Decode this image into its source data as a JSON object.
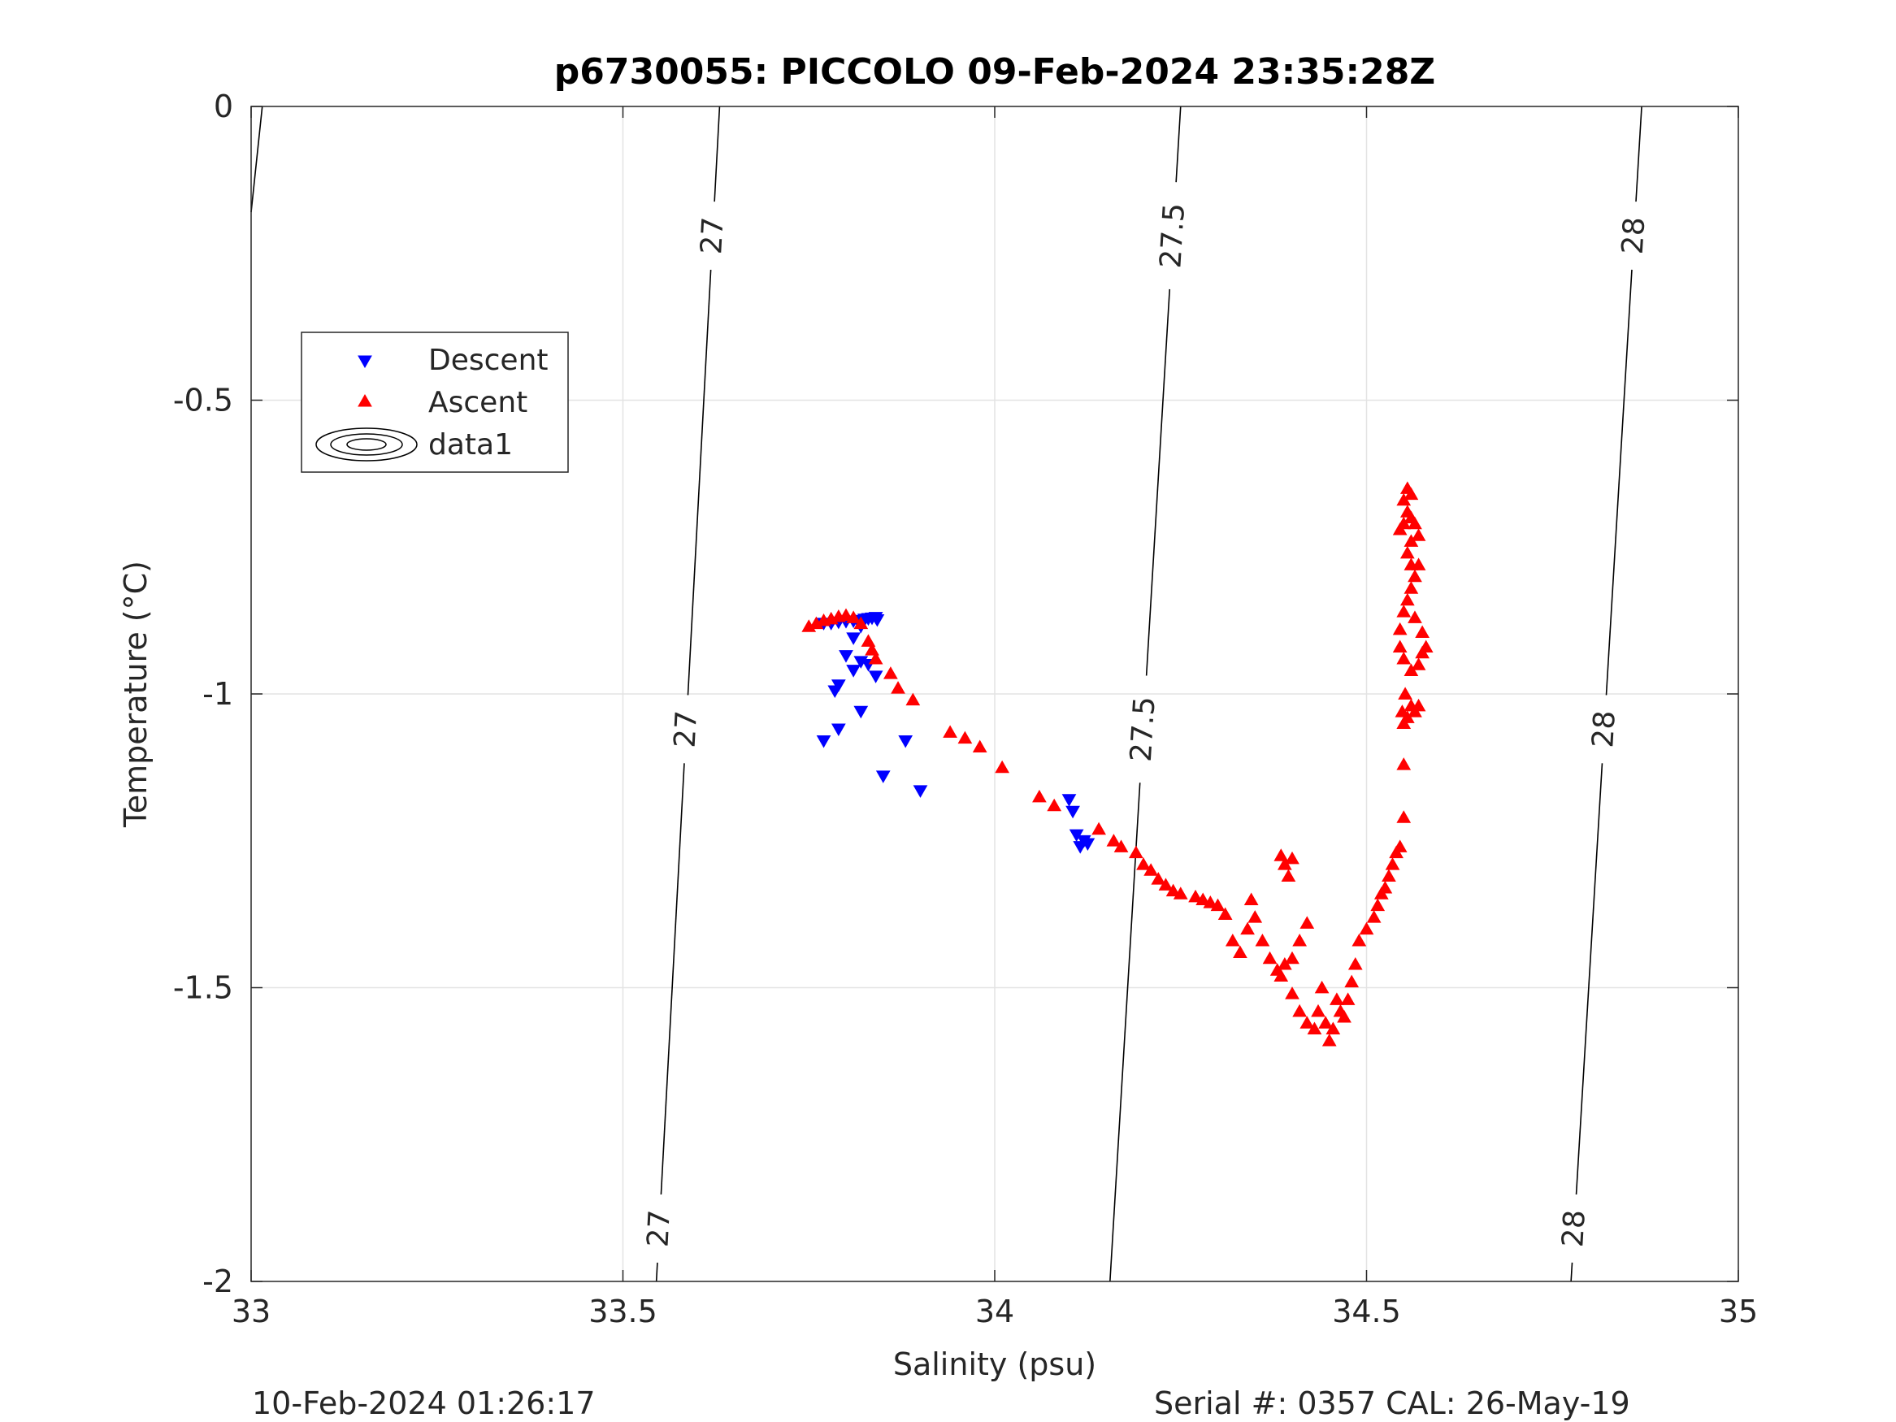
{
  "chart_data": {
    "type": "scatter",
    "title": "p6730055: PICCOLO 09-Feb-2024 23:35:28Z",
    "xlabel": "Salinity (psu)",
    "ylabel": "Temperature (°C)",
    "xlim": [
      33,
      35
    ],
    "ylim": [
      -2,
      0
    ],
    "xticks": [
      33,
      33.5,
      34,
      34.5,
      35
    ],
    "xtick_labels": [
      "33",
      "33.5",
      "34",
      "34.5",
      "35"
    ],
    "yticks": [
      0,
      -0.5,
      -1,
      -1.5,
      -2
    ],
    "ytick_labels": [
      "0",
      "-0.5",
      "-1",
      "-1.5",
      "-2"
    ],
    "grid": true,
    "legend_position": "upper-left",
    "footer_left": "10-Feb-2024 01:26:17",
    "footer_right": "Serial #: 0357  CAL: 26-May-19",
    "series": [
      {
        "name": "Descent",
        "marker": "triangle-down",
        "color": "#0000ff",
        "points": [
          [
            33.77,
            -0.88
          ],
          [
            33.78,
            -0.88
          ],
          [
            33.79,
            -0.878
          ],
          [
            33.8,
            -0.877
          ],
          [
            33.81,
            -0.876
          ],
          [
            33.82,
            -0.875
          ],
          [
            33.825,
            -0.873
          ],
          [
            33.83,
            -0.872
          ],
          [
            33.835,
            -0.871
          ],
          [
            33.84,
            -0.87
          ],
          [
            33.842,
            -0.874
          ],
          [
            33.82,
            -0.885
          ],
          [
            33.81,
            -0.905
          ],
          [
            33.8,
            -0.935
          ],
          [
            33.82,
            -0.945
          ],
          [
            33.83,
            -0.95
          ],
          [
            33.81,
            -0.96
          ],
          [
            33.84,
            -0.97
          ],
          [
            33.79,
            -0.985
          ],
          [
            33.785,
            -0.995
          ],
          [
            33.82,
            -1.03
          ],
          [
            33.79,
            -1.06
          ],
          [
            33.77,
            -1.08
          ],
          [
            33.88,
            -1.08
          ],
          [
            33.85,
            -1.14
          ],
          [
            33.9,
            -1.165
          ],
          [
            34.1,
            -1.18
          ],
          [
            34.105,
            -1.2
          ],
          [
            34.11,
            -1.24
          ],
          [
            34.12,
            -1.25
          ],
          [
            34.115,
            -1.26
          ],
          [
            34.125,
            -1.255
          ]
        ]
      },
      {
        "name": "Ascent",
        "marker": "triangle-up",
        "color": "#ff0000",
        "points": [
          [
            33.75,
            -0.885
          ],
          [
            33.76,
            -0.88
          ],
          [
            33.77,
            -0.875
          ],
          [
            33.78,
            -0.872
          ],
          [
            33.79,
            -0.868
          ],
          [
            33.8,
            -0.866
          ],
          [
            33.81,
            -0.87
          ],
          [
            33.82,
            -0.88
          ],
          [
            33.83,
            -0.91
          ],
          [
            33.835,
            -0.925
          ],
          [
            33.84,
            -0.94
          ],
          [
            33.86,
            -0.965
          ],
          [
            33.87,
            -0.99
          ],
          [
            33.89,
            -1.01
          ],
          [
            33.94,
            -1.065
          ],
          [
            33.96,
            -1.075
          ],
          [
            33.98,
            -1.09
          ],
          [
            34.01,
            -1.125
          ],
          [
            34.06,
            -1.175
          ],
          [
            34.08,
            -1.19
          ],
          [
            34.14,
            -1.23
          ],
          [
            34.16,
            -1.25
          ],
          [
            34.17,
            -1.26
          ],
          [
            34.19,
            -1.27
          ],
          [
            34.2,
            -1.29
          ],
          [
            34.21,
            -1.3
          ],
          [
            34.22,
            -1.315
          ],
          [
            34.23,
            -1.325
          ],
          [
            34.24,
            -1.335
          ],
          [
            34.25,
            -1.34
          ],
          [
            34.27,
            -1.345
          ],
          [
            34.28,
            -1.35
          ],
          [
            34.29,
            -1.355
          ],
          [
            34.3,
            -1.36
          ],
          [
            34.31,
            -1.375
          ],
          [
            34.32,
            -1.42
          ],
          [
            34.33,
            -1.44
          ],
          [
            34.34,
            -1.4
          ],
          [
            34.345,
            -1.35
          ],
          [
            34.35,
            -1.38
          ],
          [
            34.36,
            -1.42
          ],
          [
            34.37,
            -1.45
          ],
          [
            34.38,
            -1.47
          ],
          [
            34.385,
            -1.48
          ],
          [
            34.39,
            -1.46
          ],
          [
            34.4,
            -1.45
          ],
          [
            34.41,
            -1.42
          ],
          [
            34.42,
            -1.39
          ],
          [
            34.385,
            -1.275
          ],
          [
            34.39,
            -1.29
          ],
          [
            34.395,
            -1.31
          ],
          [
            34.4,
            -1.28
          ],
          [
            34.4,
            -1.51
          ],
          [
            34.41,
            -1.54
          ],
          [
            34.42,
            -1.56
          ],
          [
            34.43,
            -1.57
          ],
          [
            34.435,
            -1.54
          ],
          [
            34.44,
            -1.5
          ],
          [
            34.445,
            -1.56
          ],
          [
            34.45,
            -1.59
          ],
          [
            34.455,
            -1.57
          ],
          [
            34.46,
            -1.52
          ],
          [
            34.465,
            -1.54
          ],
          [
            34.47,
            -1.55
          ],
          [
            34.475,
            -1.52
          ],
          [
            34.48,
            -1.49
          ],
          [
            34.485,
            -1.46
          ],
          [
            34.49,
            -1.42
          ],
          [
            34.5,
            -1.4
          ],
          [
            34.51,
            -1.38
          ],
          [
            34.515,
            -1.36
          ],
          [
            34.52,
            -1.34
          ],
          [
            34.525,
            -1.33
          ],
          [
            34.53,
            -1.31
          ],
          [
            34.535,
            -1.29
          ],
          [
            34.54,
            -1.27
          ],
          [
            34.545,
            -1.26
          ],
          [
            34.55,
            -1.21
          ],
          [
            34.55,
            -1.12
          ],
          [
            34.55,
            -1.05
          ],
          [
            34.548,
            -1.03
          ],
          [
            34.552,
            -1.0
          ],
          [
            34.555,
            -1.04
          ],
          [
            34.56,
            -1.02
          ],
          [
            34.565,
            -1.03
          ],
          [
            34.57,
            -1.02
          ],
          [
            34.56,
            -0.96
          ],
          [
            34.55,
            -0.94
          ],
          [
            34.545,
            -0.92
          ],
          [
            34.57,
            -0.95
          ],
          [
            34.575,
            -0.93
          ],
          [
            34.58,
            -0.92
          ],
          [
            34.575,
            -0.895
          ],
          [
            34.545,
            -0.89
          ],
          [
            34.55,
            -0.86
          ],
          [
            34.555,
            -0.84
          ],
          [
            34.56,
            -0.82
          ],
          [
            34.565,
            -0.8
          ],
          [
            34.56,
            -0.78
          ],
          [
            34.555,
            -0.76
          ],
          [
            34.56,
            -0.74
          ],
          [
            34.57,
            -0.73
          ],
          [
            34.565,
            -0.71
          ],
          [
            34.56,
            -0.7
          ],
          [
            34.555,
            -0.69
          ],
          [
            34.55,
            -0.71
          ],
          [
            34.545,
            -0.72
          ],
          [
            34.55,
            -0.67
          ],
          [
            34.555,
            -0.65
          ],
          [
            34.56,
            -0.66
          ],
          [
            34.57,
            -0.78
          ],
          [
            34.565,
            -0.87
          ]
        ]
      },
      {
        "name": "data1",
        "marker": "contour",
        "color": "#000000",
        "contours": [
          {
            "level": "27",
            "x_top": 33.63,
            "x_bottom": 33.545,
            "labels": [
              {
                "text": "27",
                "t": -0.22
              },
              {
                "text": "27",
                "t": -1.06
              },
              {
                "text": "27",
                "t": -1.91
              }
            ]
          },
          {
            "level": "27.5",
            "x_top": 34.25,
            "x_bottom": 34.155,
            "labels": [
              {
                "text": "27.5",
                "t": -0.22
              },
              {
                "text": "27.5",
                "t": -1.06
              }
            ]
          },
          {
            "level": "28",
            "x_top": 34.87,
            "x_bottom": 34.775,
            "labels": [
              {
                "text": "28",
                "t": -0.22
              },
              {
                "text": "28",
                "t": -1.06
              },
              {
                "text": "28",
                "t": -1.91
              }
            ]
          },
          {
            "level": "",
            "x_top": 33.015,
            "x_bottom": 33.0,
            "t_bottom": -0.18,
            "labels": []
          }
        ]
      }
    ]
  }
}
